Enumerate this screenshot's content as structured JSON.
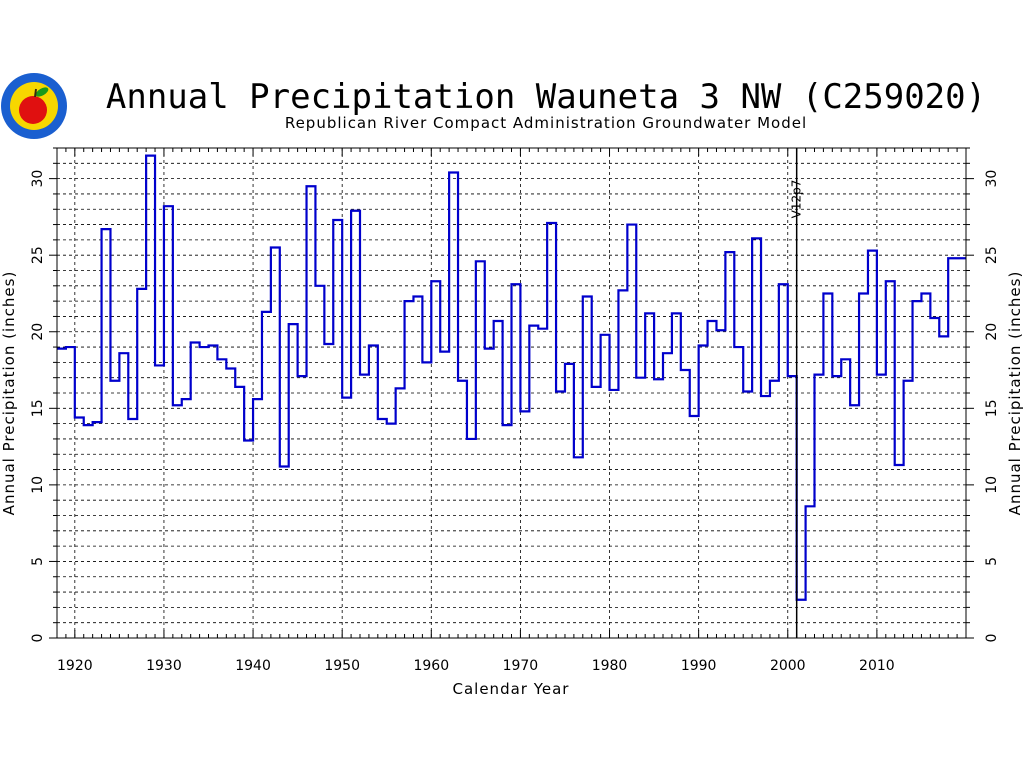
{
  "colors": {
    "series": "#0000cc",
    "axis": "#000000",
    "background": "#ffffff"
  },
  "logo": {
    "icon": "apple-seal-icon",
    "colors": {
      "ring": "#1a5fd0",
      "fill": "#f7d700",
      "apple": "#e01010",
      "leaf": "#1a9a1a"
    }
  },
  "chart_data": {
    "type": "line",
    "style": "step",
    "title": "Annual Precipitation Wauneta 3 NW (C259020)",
    "subtitle": "Republican River Compact Administration Groundwater Model",
    "xlabel": "Calendar Year",
    "ylabel": "Annual Precipitation (inches)",
    "ylabel_right": "Annual Precipitation (inches)",
    "xlim": [
      1918,
      2020
    ],
    "ylim": [
      0,
      32
    ],
    "x_ticks": [
      "1920",
      "1930",
      "1940",
      "1950",
      "1960",
      "1970",
      "1980",
      "1990",
      "2000",
      "2010"
    ],
    "y_ticks": [
      "0",
      "5",
      "10",
      "15",
      "20",
      "25",
      "30"
    ],
    "grid": true,
    "marker": {
      "year": 2001,
      "label": "V12p7"
    },
    "series": [
      {
        "years": [
          1918,
          1919,
          1920,
          1921,
          1922,
          1923,
          1924,
          1925,
          1926,
          1927,
          1928,
          1929,
          1930,
          1931,
          1932,
          1933,
          1934,
          1935,
          1936,
          1937,
          1938,
          1939,
          1940,
          1941,
          1942,
          1943,
          1944,
          1945,
          1946,
          1947,
          1948,
          1949,
          1950,
          1951,
          1952,
          1953,
          1954,
          1955,
          1956,
          1957,
          1958,
          1959,
          1960,
          1961,
          1962,
          1963,
          1964,
          1965,
          1966,
          1967,
          1968,
          1969,
          1970,
          1971,
          1972,
          1973,
          1974,
          1975,
          1976,
          1977,
          1978,
          1979,
          1980,
          1981,
          1982,
          1983,
          1984,
          1985,
          1986,
          1987,
          1988,
          1989,
          1990,
          1991,
          1992,
          1993,
          1994,
          1995,
          1996,
          1997,
          1998,
          1999,
          2000,
          2001,
          2002,
          2003,
          2004,
          2005,
          2006,
          2007,
          2008,
          2009,
          2010,
          2011,
          2012,
          2013,
          2014,
          2015,
          2016,
          2017,
          2018,
          2019
        ],
        "values": [
          18.9,
          19.0,
          14.4,
          13.9,
          14.1,
          26.7,
          16.8,
          18.6,
          14.3,
          22.8,
          31.5,
          17.8,
          28.2,
          15.2,
          15.6,
          19.3,
          19.0,
          19.1,
          18.2,
          17.6,
          16.4,
          12.9,
          15.6,
          21.3,
          25.5,
          11.2,
          20.5,
          17.1,
          29.5,
          23.0,
          19.2,
          27.3,
          15.7,
          27.9,
          17.2,
          19.1,
          14.3,
          14.0,
          16.3,
          22.0,
          22.3,
          18.0,
          23.3,
          18.7,
          30.4,
          16.8,
          13.0,
          24.6,
          18.9,
          20.7,
          13.9,
          23.1,
          14.8,
          20.4,
          20.2,
          27.1,
          16.1,
          17.9,
          11.8,
          22.3,
          16.4,
          19.8,
          16.2,
          22.7,
          27.0,
          17.0,
          21.2,
          16.9,
          18.6,
          21.2,
          17.5,
          14.5,
          19.1,
          20.7,
          20.1,
          25.2,
          19.0,
          16.1,
          26.1,
          15.8,
          16.8,
          23.1,
          17.1,
          2.5,
          8.6,
          17.2,
          22.5,
          17.1,
          18.2,
          15.2,
          22.5,
          25.3,
          17.2,
          23.3,
          11.3,
          16.8,
          22.0,
          22.5,
          20.9,
          19.7,
          24.8,
          24.8
        ]
      }
    ]
  }
}
